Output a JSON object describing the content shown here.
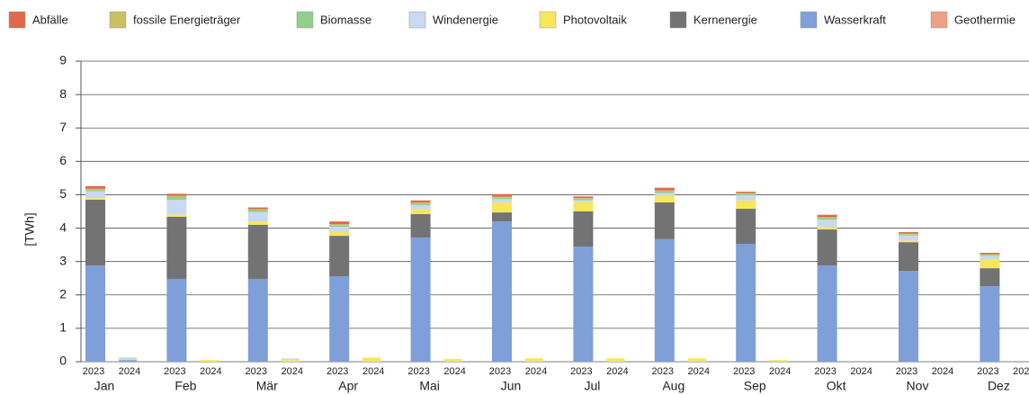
{
  "chart_data": {
    "type": "stacked-bar",
    "y_label": "[TWh]",
    "categories": [
      "Jan",
      "Feb",
      "Mär",
      "Apr",
      "Mai",
      "Jun",
      "Jul",
      "Aug",
      "Sep",
      "Okt",
      "Nov",
      "Dez"
    ],
    "subcategories": [
      "2023",
      "2024"
    ],
    "ylim": [
      0,
      9
    ],
    "yticks": [
      0,
      1,
      2,
      3,
      4,
      5,
      6,
      7,
      8,
      9
    ],
    "grid": true,
    "series": [
      {
        "name": "Abfälle",
        "color": "#e0694a",
        "values": [
          [
            0.08,
            0
          ],
          [
            0.06,
            0
          ],
          [
            0.05,
            0
          ],
          [
            0.08,
            0
          ],
          [
            0.06,
            0
          ],
          [
            0.08,
            0
          ],
          [
            0.05,
            0
          ],
          [
            0.08,
            0
          ],
          [
            0.04,
            0
          ],
          [
            0.07,
            null
          ],
          [
            0.04,
            null
          ],
          [
            0.04,
            null
          ]
        ]
      },
      {
        "name": "fossile Energieträger",
        "color": "#c9c062",
        "values": [
          [
            0.04,
            0.02
          ],
          [
            0.04,
            0
          ],
          [
            0.03,
            0
          ],
          [
            0.03,
            0
          ],
          [
            0.03,
            0
          ],
          [
            0.03,
            0
          ],
          [
            0.02,
            0
          ],
          [
            0.03,
            0
          ],
          [
            0.02,
            0
          ],
          [
            0.03,
            null
          ],
          [
            0.02,
            null
          ],
          [
            0.02,
            null
          ]
        ]
      },
      {
        "name": "Biomasse",
        "color": "#90d08a",
        "values": [
          [
            0.04,
            0
          ],
          [
            0.08,
            0
          ],
          [
            0.06,
            0
          ],
          [
            0.05,
            0
          ],
          [
            0.05,
            0
          ],
          [
            0.04,
            0
          ],
          [
            0.04,
            0
          ],
          [
            0.05,
            0
          ],
          [
            0.05,
            0
          ],
          [
            0.05,
            null
          ],
          [
            0.04,
            null
          ],
          [
            0.03,
            null
          ]
        ]
      },
      {
        "name": "Windenergie",
        "color": "#c9d9f1",
        "values": [
          [
            0.2,
            0.05
          ],
          [
            0.45,
            0
          ],
          [
            0.28,
            0.05
          ],
          [
            0.15,
            0
          ],
          [
            0.12,
            0
          ],
          [
            0.1,
            0
          ],
          [
            0.06,
            0
          ],
          [
            0.08,
            0
          ],
          [
            0.15,
            0
          ],
          [
            0.22,
            null
          ],
          [
            0.15,
            null
          ],
          [
            0.12,
            null
          ]
        ]
      },
      {
        "name": "Photovoltaik",
        "color": "#f7e65a",
        "values": [
          [
            0.05,
            0
          ],
          [
            0.06,
            0.05
          ],
          [
            0.1,
            0.05
          ],
          [
            0.12,
            0.12
          ],
          [
            0.15,
            0.08
          ],
          [
            0.3,
            0.1
          ],
          [
            0.28,
            0.1
          ],
          [
            0.2,
            0.1
          ],
          [
            0.25,
            0.05
          ],
          [
            0.07,
            null
          ],
          [
            0.05,
            null
          ],
          [
            0.25,
            null
          ]
        ]
      },
      {
        "name": "Kernenergie",
        "color": "#737373",
        "values": [
          [
            1.97,
            0
          ],
          [
            1.86,
            0
          ],
          [
            1.62,
            0
          ],
          [
            1.21,
            0
          ],
          [
            0.7,
            0
          ],
          [
            0.27,
            0
          ],
          [
            1.05,
            0
          ],
          [
            1.1,
            0
          ],
          [
            1.05,
            0
          ],
          [
            1.08,
            null
          ],
          [
            0.86,
            null
          ],
          [
            0.54,
            null
          ]
        ]
      },
      {
        "name": "Wasserkraft",
        "color": "#7f9fd9",
        "values": [
          [
            2.88,
            0.05
          ],
          [
            2.48,
            0
          ],
          [
            2.48,
            0
          ],
          [
            2.56,
            0
          ],
          [
            3.72,
            0
          ],
          [
            4.2,
            0
          ],
          [
            3.45,
            0
          ],
          [
            3.67,
            0
          ],
          [
            3.53,
            0
          ],
          [
            2.88,
            null
          ],
          [
            2.72,
            null
          ],
          [
            2.26,
            null
          ]
        ]
      },
      {
        "name": "Geothermie",
        "color": "#e9a283",
        "values": [
          [
            0,
            0
          ],
          [
            0,
            0
          ],
          [
            0,
            0
          ],
          [
            0,
            0
          ],
          [
            0,
            0
          ],
          [
            0,
            0
          ],
          [
            0,
            0
          ],
          [
            0,
            0
          ],
          [
            0,
            0
          ],
          [
            0,
            null
          ],
          [
            0,
            null
          ],
          [
            0,
            null
          ]
        ]
      }
    ]
  }
}
